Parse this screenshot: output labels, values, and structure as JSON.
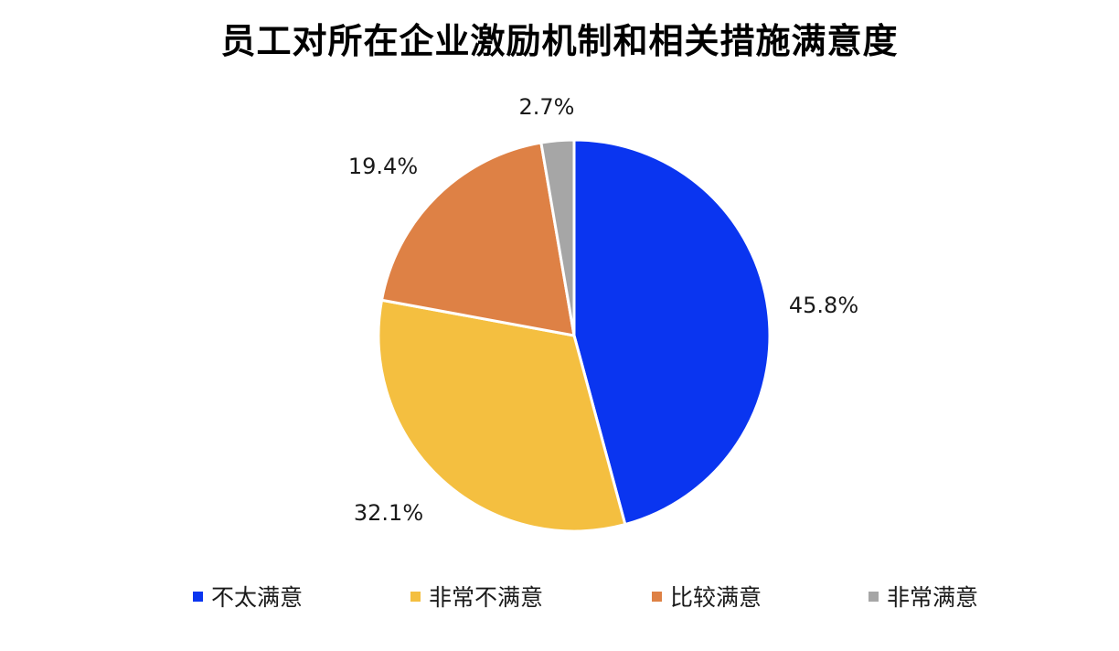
{
  "chart_data": {
    "type": "pie",
    "title": "员工对所在企业激励机制和相关措施满意度",
    "categories": [
      "不太满意",
      "非常不满意",
      "比较满意",
      "非常满意"
    ],
    "values": [
      45.8,
      32.1,
      19.4,
      2.7
    ],
    "value_labels": [
      "45.8%",
      "32.1%",
      "19.4%",
      "2.7%"
    ],
    "colors": [
      "#0a35f0",
      "#f4bf40",
      "#de8145",
      "#a6a6a6"
    ],
    "start_angle_deg": 0,
    "direction": "clockwise",
    "legend_position": "bottom"
  }
}
